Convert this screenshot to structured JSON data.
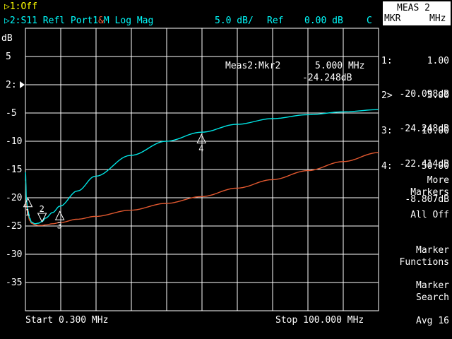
{
  "header": {
    "trace1_label": "▷1:Off",
    "trace2_prefix": "▷2:S11 Refl Port1",
    "trace2_amp": "&",
    "trace2_m": "M",
    "trace2_format": " Log Mag",
    "scale": "5.0 dB/",
    "ref_label": "Ref",
    "ref_value": "0.00 dB",
    "cal_flag": "C"
  },
  "chart_data": {
    "type": "line",
    "ylabel": "dB",
    "ylim": [
      -40,
      10
    ],
    "xlim": [
      0.3,
      100.0
    ],
    "y_ticks": [
      "5",
      "2:",
      "-5",
      "-10",
      "-15",
      "-20",
      "-25",
      "-30",
      "-35"
    ],
    "y_tick_values": [
      5,
      0,
      -5,
      -10,
      -15,
      -20,
      -25,
      -30,
      -35
    ],
    "ref_marker_value": 0,
    "grid": true,
    "start_label": "Start 0.300 MHz",
    "stop_label": "Stop 100.000 MHz",
    "series": [
      {
        "color": "#00e5e5",
        "x": [
          0.3,
          0.6,
          1.0,
          1.5,
          2.0,
          3.0,
          4.0,
          5.0,
          6.0,
          8.0,
          10.0,
          15.0,
          20.0,
          30.0,
          40.0,
          50.0,
          60.0,
          70.0,
          80.0,
          90.0,
          100.0
        ],
        "y": [
          -15.5,
          -20.5,
          -22.3,
          -23.6,
          -24.3,
          -24.6,
          -24.5,
          -24.2,
          -23.6,
          -22.6,
          -21.5,
          -18.8,
          -16.2,
          -12.5,
          -10.0,
          -8.4,
          -7.0,
          -6.0,
          -5.3,
          -4.8,
          -4.4
        ]
      },
      {
        "color": "#e2582f",
        "x": [
          0.3,
          0.6,
          1.0,
          1.5,
          2.0,
          3.0,
          4.0,
          5.0,
          6.0,
          8.0,
          10.0,
          15.0,
          20.0,
          30.0,
          40.0,
          50.0,
          60.0,
          70.0,
          80.0,
          90.0,
          100.0
        ],
        "y": [
          -17.0,
          -21.5,
          -23.0,
          -24.0,
          -24.5,
          -24.8,
          -24.9,
          -24.9,
          -24.8,
          -24.6,
          -24.4,
          -23.8,
          -23.3,
          -22.2,
          -21.0,
          -19.8,
          -18.3,
          -16.8,
          -15.2,
          -13.6,
          -12.0
        ]
      }
    ],
    "markers": [
      {
        "label": "1",
        "x": 1.0,
        "y": -20.098,
        "dir": "up"
      },
      {
        "label": "2",
        "x": 5.0,
        "y": -24.248,
        "dir": "down"
      },
      {
        "label": "3",
        "x": 10.0,
        "y": -22.414,
        "dir": "up"
      },
      {
        "label": "4",
        "x": 50.0,
        "y": -8.807,
        "dir": "up"
      }
    ]
  },
  "readout": {
    "title": "Meas2:Mkr2",
    "freq": "5.000 MHz",
    "value": "-24.248dB"
  },
  "softkeys": {
    "title": "MEAS 2",
    "mkr_label": "MKR",
    "unit_label": "MHz",
    "markers": [
      {
        "id": "1:",
        "freq": "1.00",
        "value": "-20.098dB"
      },
      {
        "id": "2>",
        "freq": "5.00",
        "value": "-24.248dB"
      },
      {
        "id": "3:",
        "freq": "10.00",
        "value": "-22.414dB"
      },
      {
        "id": "4:",
        "freq": "50.00",
        "value": "-8.807dB"
      }
    ],
    "more_markers_1": "More",
    "more_markers_2": "Markers",
    "all_off": "All Off",
    "marker_functions_1": "Marker",
    "marker_functions_2": "Functions",
    "marker_search_1": "Marker",
    "marker_search_2": "Search",
    "avg": "Avg 16"
  },
  "colors": {
    "grid": "#ffffff",
    "trace_cyan": "#00e5e5",
    "trace_red": "#e2582f",
    "header_yellow": "#ffff00",
    "header_cyan": "#00ffff"
  }
}
